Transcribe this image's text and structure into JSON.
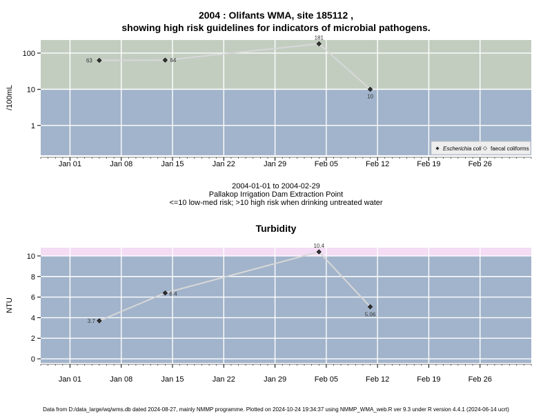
{
  "title": {
    "line1": "2004 : Olifants WMA, site 185112 ,",
    "line2": "showing high risk guidelines for indicators of microbial pathogens."
  },
  "subtitle": {
    "date_range": "2004-01-01 to 2004-02-29",
    "site_name": "Pallakop Irrigation Dam Extraction Point",
    "risk_note": "<=10 low-med risk; >10 high risk when drinking untreated water"
  },
  "footer": "Data from D:/data_large/wq/wms.db dated 2024-08-27, mainly NMMP programme. Plotted on 2024-10-24 19:34:37 using NMMP_WMA_web.R ver 9.3 under R version 4.4.1 (2024-06-14 ucrt)",
  "colors": {
    "panel_blue": "#a2b4cb",
    "risk_green": "#c2cdc0",
    "risk_pink": "#f3dcf4",
    "grid": "#ffffff",
    "line": "#d8d8d8",
    "marker": "#333333"
  },
  "chart_data": [
    {
      "type": "line",
      "name": "microbial",
      "ylabel": "/100mL",
      "yscale": "log",
      "ylim": [
        0.15,
        230
      ],
      "xlim": [
        "2003-12-28",
        "2004-03-04"
      ],
      "yticks": [
        1,
        10,
        100
      ],
      "ytick_labels": [
        "1",
        "10",
        "100"
      ],
      "xticks": [
        "2004-01-01",
        "2004-01-08",
        "2004-01-15",
        "2004-01-22",
        "2004-01-29",
        "2004-02-05",
        "2004-02-12",
        "2004-02-19",
        "2004-02-26"
      ],
      "xtick_labels": [
        "Jan 01",
        "Jan 08",
        "Jan 15",
        "Jan 22",
        "Jan 29",
        "Feb 05",
        "Feb 12",
        "Feb 19",
        "Feb 26"
      ],
      "risk_threshold": 10,
      "grid": true,
      "legend_position": "bottom-right",
      "legend": [
        {
          "label": "Escherichia coli",
          "marker": "diamond-filled"
        },
        {
          "label": "faecal coliforms",
          "marker": "diamond-open"
        }
      ],
      "series": [
        {
          "name": "Escherichia coli",
          "x": [
            "2004-01-05",
            "2004-01-14",
            "2004-02-04",
            "2004-02-11"
          ],
          "y": [
            63,
            64,
            181,
            10
          ],
          "labels": [
            "63",
            "64",
            "181",
            "10"
          ]
        }
      ]
    },
    {
      "type": "line",
      "name": "turbidity",
      "title": "Turbidity",
      "ylabel": "NTU",
      "yscale": "linear",
      "ylim": [
        -0.4,
        10.8
      ],
      "xlim": [
        "2003-12-28",
        "2004-03-04"
      ],
      "yticks": [
        0,
        2,
        4,
        6,
        8,
        10
      ],
      "ytick_labels": [
        "0",
        "2",
        "4",
        "6",
        "8",
        "10"
      ],
      "xticks": [
        "2004-01-01",
        "2004-01-08",
        "2004-01-15",
        "2004-01-22",
        "2004-01-29",
        "2004-02-05",
        "2004-02-12",
        "2004-02-19",
        "2004-02-26"
      ],
      "xtick_labels": [
        "Jan 01",
        "Jan 08",
        "Jan 15",
        "Jan 22",
        "Jan 29",
        "Feb 05",
        "Feb 12",
        "Feb 19",
        "Feb 26"
      ],
      "risk_threshold": 10,
      "grid": true,
      "series": [
        {
          "name": "Turbidity",
          "x": [
            "2004-01-05",
            "2004-01-14",
            "2004-02-04",
            "2004-02-11"
          ],
          "y": [
            3.7,
            6.4,
            10.4,
            5.06
          ],
          "labels": [
            "3.7",
            "6.4",
            "10.4",
            "5.06"
          ]
        }
      ]
    }
  ]
}
